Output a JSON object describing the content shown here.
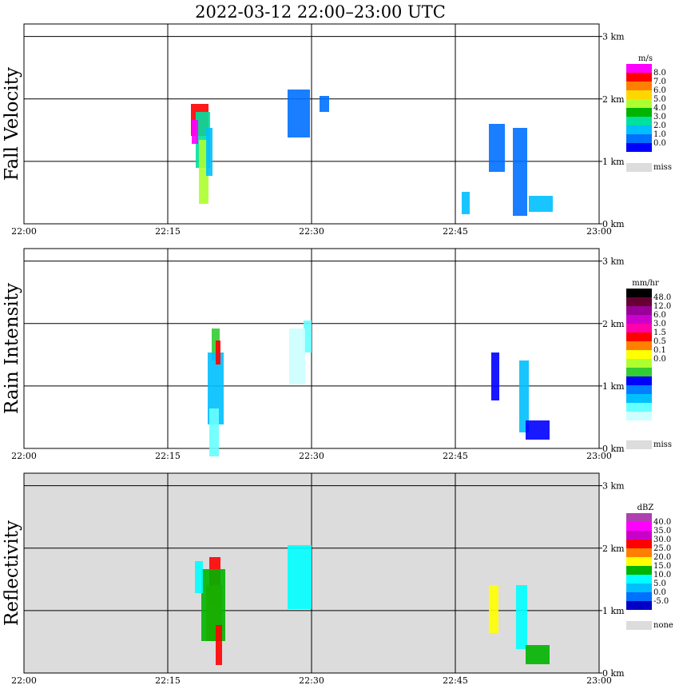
{
  "title": "2022-03-12   22:00–23:00 UTC",
  "x_ticks": [
    "22:00",
    "22:15",
    "22:30",
    "22:45",
    "23:00"
  ],
  "y_ticks": [
    "0 km",
    "1 km",
    "2 km",
    "3 km"
  ],
  "chart_data": [
    {
      "type": "heatmap",
      "title": "Fall Velocity",
      "xlim": [
        "22:00",
        "23:00"
      ],
      "ylim": [
        0,
        3.2
      ],
      "y_unit": "km",
      "grid": true,
      "colorbar": {
        "unit": "m/s",
        "labels": [
          "8.0",
          "7.0",
          "6.0",
          "5.0",
          "4.0",
          "3.0",
          "2.0",
          "1.0",
          "0.0"
        ],
        "colors": [
          "#ff00ff",
          "#ff0000",
          "#ff7f00",
          "#ffd700",
          "#adff2f",
          "#00b400",
          "#00e0a0",
          "#00bfff",
          "#0070ff",
          "#0000ff"
        ],
        "missing_label": "miss",
        "missing_color": "#dcdcdc"
      },
      "background": "#ffffff"
    },
    {
      "type": "heatmap",
      "title": "Rain Intensity",
      "xlim": [
        "22:00",
        "23:00"
      ],
      "ylim": [
        0,
        3.2
      ],
      "y_unit": "km",
      "grid": true,
      "colorbar": {
        "unit": "mm/hr",
        "labels": [
          "48.0",
          "12.0",
          "6.0",
          "3.0",
          "1.5",
          "0.5",
          "0.1",
          "0.0"
        ],
        "colors": [
          "#000000",
          "#660033",
          "#990099",
          "#cc00cc",
          "#ff00aa",
          "#ff0000",
          "#ff7f00",
          "#ffff00",
          "#adff2f",
          "#33cc33",
          "#0000ff",
          "#0080ff",
          "#00bfff",
          "#66ffff",
          "#ccffff",
          "#ffffff"
        ],
        "missing_label": "miss",
        "missing_color": "#dcdcdc"
      },
      "background": "#ffffff"
    },
    {
      "type": "heatmap",
      "title": "Reflectivity",
      "xlim": [
        "22:00",
        "23:00"
      ],
      "ylim": [
        0,
        3.2
      ],
      "y_unit": "km",
      "grid": true,
      "colorbar": {
        "unit": "dBZ",
        "labels": [
          "40.0",
          "35.0",
          "30.0",
          "25.0",
          "20.0",
          "15.0",
          "10.0",
          "5.0",
          "0.0",
          "-5.0"
        ],
        "colors": [
          "#b040b0",
          "#ff00ff",
          "#c800c8",
          "#ff0000",
          "#ff7f00",
          "#ffff00",
          "#00b400",
          "#00ffff",
          "#00bfff",
          "#0070ff",
          "#0000c8"
        ],
        "missing_label": "none",
        "missing_color": "#dcdcdc"
      },
      "background": "#dcdcdc"
    }
  ]
}
